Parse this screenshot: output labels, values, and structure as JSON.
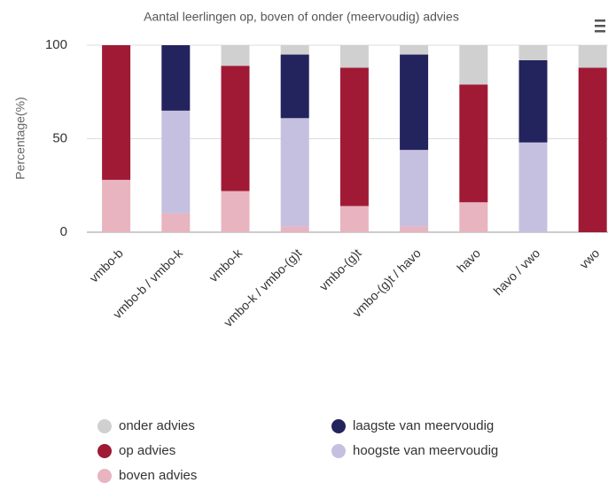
{
  "chart_data": {
    "type": "stacked_bar",
    "title": "Aantal leerlingen op, boven of onder (meervoudig) advies",
    "y_label": "Percentage(%)",
    "categories": [
      "vmbo-b",
      "vmbo-b / vmbo-k",
      "vmbo-k",
      "vmbo-k / vmbo-(g)t",
      "vmbo-(g)t",
      "vmbo-(g)t / havo",
      "havo",
      "havo / vwo",
      "vwo"
    ],
    "series": [
      {
        "name": "boven advies",
        "color": "#e8b4bf",
        "values": [
          28,
          10,
          22,
          3,
          14,
          3,
          16,
          0,
          0
        ]
      },
      {
        "name": "hoogste van meervoudig",
        "color": "#c5c0e0",
        "values": [
          0,
          55,
          0,
          58,
          0,
          41,
          0,
          48,
          0
        ]
      },
      {
        "name": "laagste van meervoudig",
        "color": "#23235e",
        "values": [
          0,
          35,
          0,
          34,
          0,
          51,
          0,
          44,
          0
        ]
      },
      {
        "name": "op advies",
        "color": "#a01a35",
        "values": [
          72,
          0,
          67,
          0,
          74,
          0,
          63,
          0,
          88
        ]
      },
      {
        "name": "onder advies",
        "color": "#d0d0d0",
        "values": [
          0,
          0,
          11,
          5,
          12,
          5,
          21,
          8,
          12
        ]
      }
    ],
    "ylim": [
      0,
      100
    ],
    "yticks": [
      0,
      50,
      100
    ],
    "grid": true
  }
}
